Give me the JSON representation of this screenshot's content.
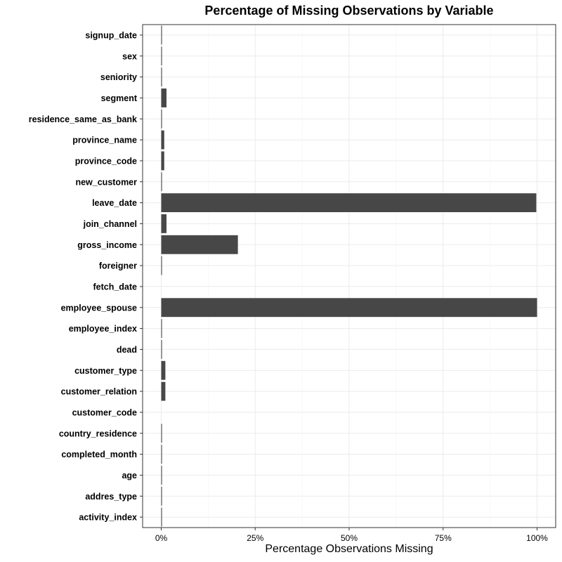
{
  "chart_data": {
    "type": "bar",
    "orientation": "horizontal",
    "title": "Percentage of Missing Observations by Variable",
    "xlabel": "Percentage Observations Missing",
    "ylabel": "",
    "xlim": [
      0,
      100
    ],
    "x_ticks": [
      0,
      25,
      50,
      75,
      100
    ],
    "x_tick_labels": [
      "0%",
      "25%",
      "50%",
      "75%",
      "100%"
    ],
    "grid": true,
    "bar_color": "#474747",
    "categories": [
      "signup_date",
      "sex",
      "seniority",
      "segment",
      "residence_same_as_bank",
      "province_name",
      "province_code",
      "new_customer",
      "leave_date",
      "join_channel",
      "gross_income",
      "foreigner",
      "fetch_date",
      "employee_spouse",
      "employee_index",
      "dead",
      "customer_type",
      "customer_relation",
      "customer_code",
      "country_residence",
      "completed_month",
      "age",
      "addres_type",
      "activity_index"
    ],
    "values": [
      0.2,
      0.2,
      0.2,
      1.4,
      0.2,
      0.8,
      0.8,
      0.2,
      99.8,
      1.4,
      20.4,
      0.2,
      0.0,
      100.0,
      0.2,
      0.2,
      1.1,
      1.1,
      0.0,
      0.2,
      0.2,
      0.2,
      0.2,
      0.2
    ]
  }
}
